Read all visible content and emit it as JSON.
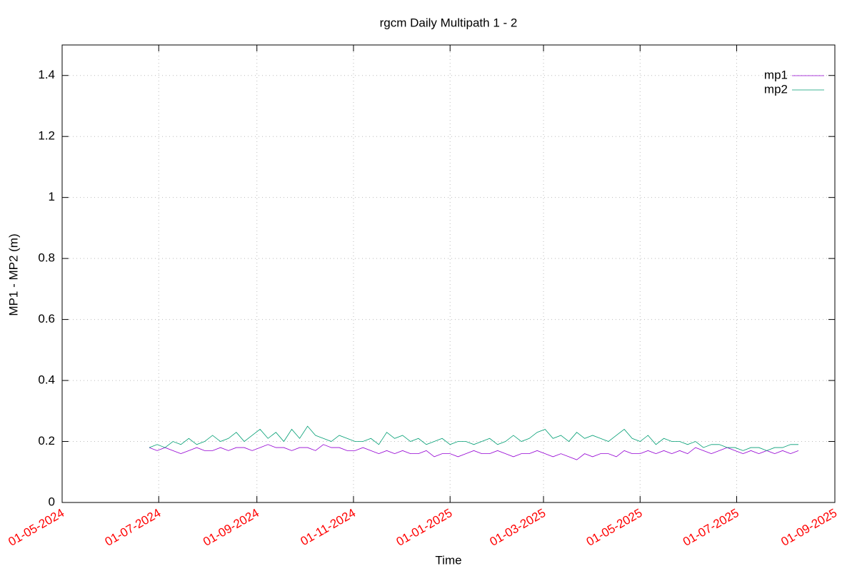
{
  "chart_data": {
    "type": "line",
    "title": "rgcm Daily Multipath 1 - 2",
    "x_label": "Time",
    "y_label": "MP1 - MP2 (m)",
    "x": [
      "2024-06-25",
      "2024-06-30",
      "2024-07-05",
      "2024-07-10",
      "2024-07-15",
      "2024-07-20",
      "2024-07-25",
      "2024-07-30",
      "2024-08-04",
      "2024-08-09",
      "2024-08-14",
      "2024-08-19",
      "2024-08-24",
      "2024-08-29",
      "2024-09-03",
      "2024-09-08",
      "2024-09-13",
      "2024-09-18",
      "2024-09-23",
      "2024-09-28",
      "2024-10-03",
      "2024-10-08",
      "2024-10-13",
      "2024-10-18",
      "2024-10-23",
      "2024-10-28",
      "2024-11-02",
      "2024-11-07",
      "2024-11-12",
      "2024-11-17",
      "2024-11-22",
      "2024-11-27",
      "2024-12-02",
      "2024-12-07",
      "2024-12-12",
      "2024-12-17",
      "2024-12-22",
      "2024-12-27",
      "2025-01-01",
      "2025-01-06",
      "2025-01-11",
      "2025-01-16",
      "2025-01-21",
      "2025-01-26",
      "2025-01-31",
      "2025-02-05",
      "2025-02-10",
      "2025-02-15",
      "2025-02-20",
      "2025-02-25",
      "2025-03-02",
      "2025-03-07",
      "2025-03-12",
      "2025-03-17",
      "2025-03-22",
      "2025-03-27",
      "2025-04-01",
      "2025-04-06",
      "2025-04-11",
      "2025-04-16",
      "2025-04-21",
      "2025-04-26",
      "2025-05-01",
      "2025-05-06",
      "2025-05-11",
      "2025-05-16",
      "2025-05-21",
      "2025-05-26",
      "2025-05-31",
      "2025-06-05",
      "2025-06-10",
      "2025-06-15",
      "2025-06-20",
      "2025-06-25",
      "2025-06-30",
      "2025-07-05",
      "2025-07-10",
      "2025-07-15",
      "2025-07-20",
      "2025-07-25",
      "2025-07-30",
      "2025-08-04",
      "2025-08-09"
    ],
    "series": [
      {
        "name": "mp1",
        "color": "#9400d3",
        "values": [
          0.18,
          0.17,
          0.18,
          0.17,
          0.16,
          0.17,
          0.18,
          0.17,
          0.17,
          0.18,
          0.17,
          0.18,
          0.18,
          0.17,
          0.18,
          0.19,
          0.18,
          0.18,
          0.17,
          0.18,
          0.18,
          0.17,
          0.19,
          0.18,
          0.18,
          0.17,
          0.17,
          0.18,
          0.17,
          0.16,
          0.17,
          0.16,
          0.17,
          0.16,
          0.16,
          0.17,
          0.15,
          0.16,
          0.16,
          0.15,
          0.16,
          0.17,
          0.16,
          0.16,
          0.17,
          0.16,
          0.15,
          0.16,
          0.16,
          0.17,
          0.16,
          0.15,
          0.16,
          0.15,
          0.14,
          0.16,
          0.15,
          0.16,
          0.16,
          0.15,
          0.17,
          0.16,
          0.16,
          0.17,
          0.16,
          0.17,
          0.16,
          0.17,
          0.16,
          0.18,
          0.17,
          0.16,
          0.17,
          0.18,
          0.17,
          0.16,
          0.17,
          0.16,
          0.17,
          0.16,
          0.17,
          0.16,
          0.17
        ]
      },
      {
        "name": "mp2",
        "color": "#009e73",
        "values": [
          0.18,
          0.19,
          0.18,
          0.2,
          0.19,
          0.21,
          0.19,
          0.2,
          0.22,
          0.2,
          0.21,
          0.23,
          0.2,
          0.22,
          0.24,
          0.21,
          0.23,
          0.2,
          0.24,
          0.21,
          0.25,
          0.22,
          0.21,
          0.2,
          0.22,
          0.21,
          0.2,
          0.2,
          0.21,
          0.19,
          0.23,
          0.21,
          0.22,
          0.2,
          0.21,
          0.19,
          0.2,
          0.21,
          0.19,
          0.2,
          0.2,
          0.19,
          0.2,
          0.21,
          0.19,
          0.2,
          0.22,
          0.2,
          0.21,
          0.23,
          0.24,
          0.21,
          0.22,
          0.2,
          0.23,
          0.21,
          0.22,
          0.21,
          0.2,
          0.22,
          0.24,
          0.21,
          0.2,
          0.22,
          0.19,
          0.21,
          0.2,
          0.2,
          0.19,
          0.2,
          0.18,
          0.19,
          0.19,
          0.18,
          0.18,
          0.17,
          0.18,
          0.18,
          0.17,
          0.18,
          0.18,
          0.19,
          0.19
        ]
      }
    ],
    "xlim": [
      "2024-05-01",
      "2025-09-01"
    ],
    "xticks": [
      {
        "value": "2024-05-01",
        "label": "01-05-2024"
      },
      {
        "value": "2024-07-01",
        "label": "01-07-2024"
      },
      {
        "value": "2024-09-01",
        "label": "01-09-2024"
      },
      {
        "value": "2024-11-01",
        "label": "01-11-2024"
      },
      {
        "value": "2025-01-01",
        "label": "01-01-2025"
      },
      {
        "value": "2025-03-01",
        "label": "01-03-2025"
      },
      {
        "value": "2025-05-01",
        "label": "01-05-2025"
      },
      {
        "value": "2025-07-01",
        "label": "01-07-2025"
      },
      {
        "value": "2025-09-01",
        "label": "01-09-2025"
      }
    ],
    "xtick_color": "#ff0000",
    "ylim": [
      0,
      1.5
    ],
    "yticks": [
      0,
      0.2,
      0.4,
      0.6,
      0.8,
      1,
      1.2,
      1.4
    ],
    "grid": true,
    "legend": "top-right"
  }
}
